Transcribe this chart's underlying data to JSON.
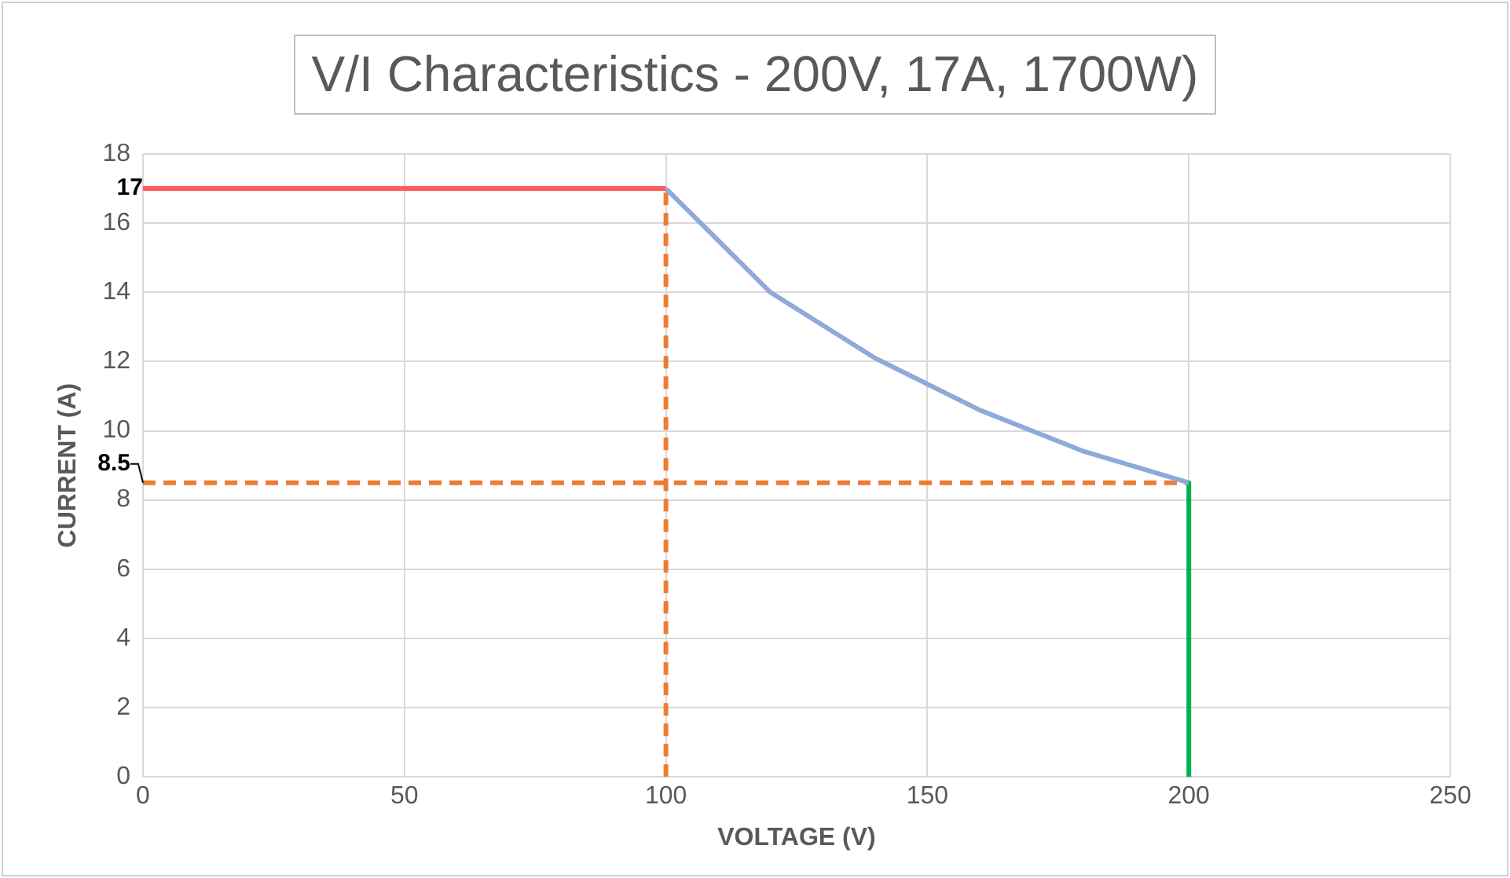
{
  "chart_data": {
    "type": "line",
    "title": "V/I Characteristics - 200V, 17A, 1700W)",
    "xlabel": "VOLTAGE (V)",
    "ylabel": "CURRENT (A)",
    "xlim": [
      0,
      250
    ],
    "ylim": [
      0,
      18
    ],
    "xticks": [
      0,
      50,
      100,
      150,
      200,
      250
    ],
    "yticks": [
      0,
      2,
      4,
      6,
      8,
      10,
      12,
      14,
      16,
      18
    ],
    "grid": true,
    "legend": false,
    "marker": "none",
    "series": [
      {
        "type": "line",
        "color": "#ff5b5b",
        "x": [
          0,
          20,
          40,
          60,
          80,
          100
        ],
        "values": [
          17,
          17,
          17,
          17,
          17,
          17
        ],
        "line_style": "solid"
      },
      {
        "type": "line",
        "color": "#8eaadb",
        "x": [
          100,
          120,
          140,
          160,
          180,
          200
        ],
        "values": [
          17,
          14,
          12.1,
          10.6,
          9.4,
          8.5
        ],
        "line_style": "solid"
      },
      {
        "type": "line",
        "color": "#00b050",
        "x": [
          200,
          200
        ],
        "values": [
          8.5,
          0
        ],
        "line_style": "solid"
      },
      {
        "type": "line",
        "color": "#ed7d31",
        "x": [
          100,
          100
        ],
        "values": [
          0,
          17
        ],
        "line_style": "dashed"
      },
      {
        "type": "line",
        "color": "#ed7d31",
        "x": [
          0,
          200
        ],
        "values": [
          8.5,
          8.5
        ],
        "line_style": "dashed"
      }
    ],
    "annotations": [
      {
        "text": "17",
        "x": 0,
        "y": 17
      },
      {
        "text": "8.5",
        "x": 0,
        "y": 8.5
      }
    ]
  }
}
